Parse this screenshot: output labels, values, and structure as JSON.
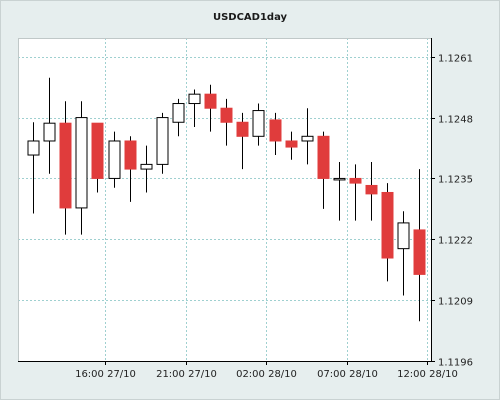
{
  "chart_data": {
    "type": "candlestick",
    "title": "USDCAD1day",
    "y_ticks": [
      1.1196,
      1.1209,
      1.1222,
      1.1235,
      1.1248,
      1.1261
    ],
    "y_tick_labels": [
      "1.1196",
      "1.1209",
      "1.1222",
      "1.1235",
      "1.1248",
      "1.1261"
    ],
    "ylim": [
      1.1196,
      1.1265
    ],
    "x_tick_labels": [
      {
        "label": "16:00 27/10",
        "at": 4.5
      },
      {
        "label": "21:00 27/10",
        "at": 9.5
      },
      {
        "label": "02:00 28/10",
        "at": 14.5
      },
      {
        "label": "07:00 28/10",
        "at": 19.5
      },
      {
        "label": "12:00 28/10",
        "at": 24.5
      }
    ],
    "grid": true,
    "colors": {
      "up": "#ffffff",
      "down": "#e03c3c",
      "outline": "#000000",
      "grid": "#9fd0d0"
    },
    "candles": [
      {
        "open": 1.124,
        "close": 1.1243,
        "high": 1.1247,
        "low": 1.12275
      },
      {
        "open": 1.1243,
        "close": 1.12468,
        "high": 1.12565,
        "low": 1.1236
      },
      {
        "open": 1.12468,
        "close": 1.12287,
        "high": 1.12515,
        "low": 1.1223
      },
      {
        "open": 1.12287,
        "close": 1.1248,
        "high": 1.12515,
        "low": 1.1223
      },
      {
        "open": 1.12468,
        "close": 1.1235,
        "high": 1.12468,
        "low": 1.1232
      },
      {
        "open": 1.1235,
        "close": 1.1243,
        "high": 1.1245,
        "low": 1.1233
      },
      {
        "open": 1.1243,
        "close": 1.1237,
        "high": 1.1244,
        "low": 1.123
      },
      {
        "open": 1.1237,
        "close": 1.1238,
        "high": 1.1242,
        "low": 1.1232
      },
      {
        "open": 1.1238,
        "close": 1.1248,
        "high": 1.1249,
        "low": 1.1236
      },
      {
        "open": 1.1247,
        "close": 1.1251,
        "high": 1.1252,
        "low": 1.1244
      },
      {
        "open": 1.1251,
        "close": 1.1253,
        "high": 1.1254,
        "low": 1.1246
      },
      {
        "open": 1.1253,
        "close": 1.125,
        "high": 1.1255,
        "low": 1.1245
      },
      {
        "open": 1.125,
        "close": 1.1247,
        "high": 1.1252,
        "low": 1.1242
      },
      {
        "open": 1.1247,
        "close": 1.1244,
        "high": 1.1249,
        "low": 1.1237
      },
      {
        "open": 1.1244,
        "close": 1.12495,
        "high": 1.1251,
        "low": 1.1242
      },
      {
        "open": 1.12475,
        "close": 1.1243,
        "high": 1.1249,
        "low": 1.124
      },
      {
        "open": 1.1243,
        "close": 1.12417,
        "high": 1.1245,
        "low": 1.1239
      },
      {
        "open": 1.1243,
        "close": 1.1244,
        "high": 1.125,
        "low": 1.1238
      },
      {
        "open": 1.1244,
        "close": 1.1235,
        "high": 1.1245,
        "low": 1.12285
      },
      {
        "open": 1.1235,
        "close": 1.1235,
        "high": 1.12385,
        "low": 1.1226
      },
      {
        "open": 1.1235,
        "close": 1.1234,
        "high": 1.1238,
        "low": 1.1226
      },
      {
        "open": 1.12335,
        "close": 1.12317,
        "high": 1.12385,
        "low": 1.1226
      },
      {
        "open": 1.1232,
        "close": 1.1218,
        "high": 1.1234,
        "low": 1.1213
      },
      {
        "open": 1.122,
        "close": 1.12255,
        "high": 1.1228,
        "low": 1.121
      },
      {
        "open": 1.1224,
        "close": 1.12145,
        "high": 1.1237,
        "low": 1.12045
      }
    ]
  }
}
